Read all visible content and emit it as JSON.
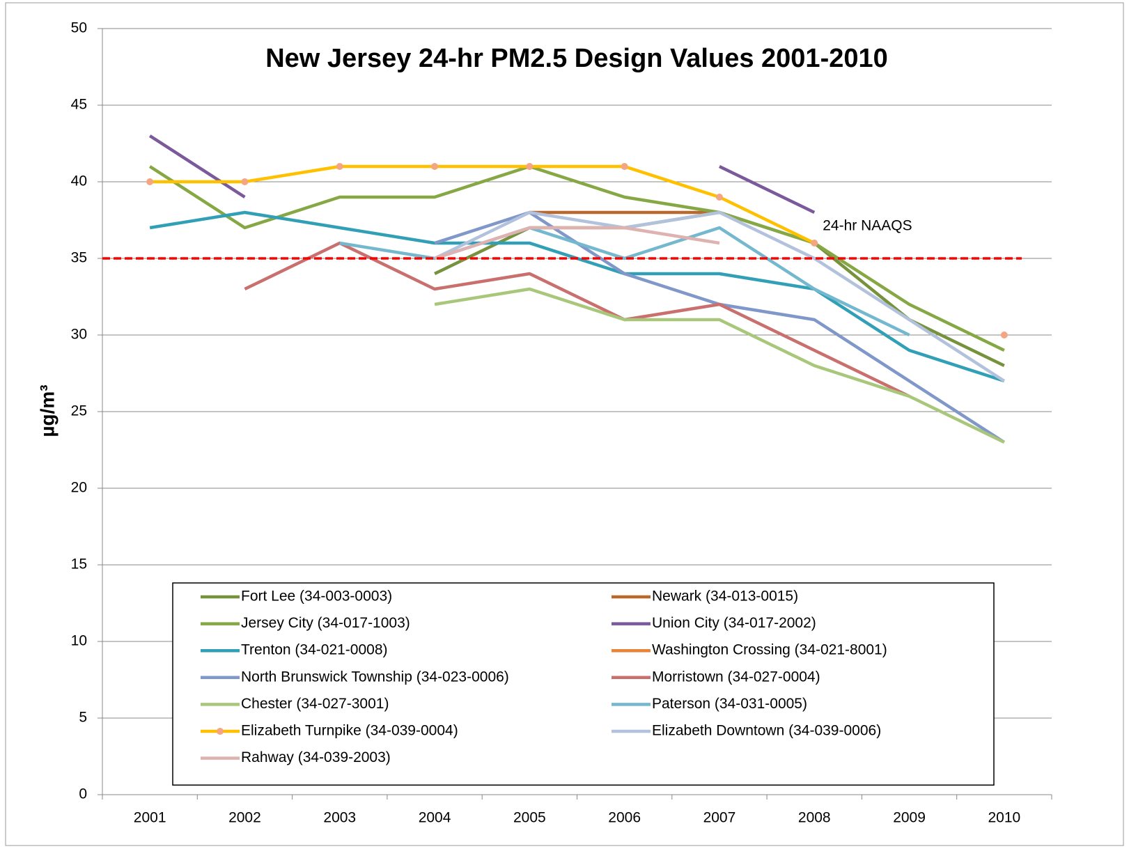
{
  "chart_data": {
    "type": "line",
    "title": "New Jersey 24-hr PM2.5 Design Values 2001-2010",
    "y_label": "µg/m³",
    "categories": [
      "2001",
      "2002",
      "2003",
      "2004",
      "2005",
      "2006",
      "2007",
      "2008",
      "2009",
      "2010"
    ],
    "ylim": [
      0,
      50
    ],
    "yticks": [
      0,
      5,
      10,
      15,
      20,
      25,
      30,
      35,
      40,
      45,
      50
    ],
    "grid": true,
    "reference_line": {
      "value": 35,
      "label": "24-hr NAAQS",
      "color": "#ff0000"
    },
    "legend": "bottom",
    "series": [
      {
        "name": "Fort Lee (34-003-0003)",
        "color": "#76923c",
        "values": [
          null,
          null,
          null,
          34,
          37,
          37,
          38,
          36,
          31,
          28
        ]
      },
      {
        "name": "Newark (34-013-0015)",
        "color": "#b9692b",
        "values": [
          null,
          null,
          null,
          null,
          38,
          38,
          38,
          null,
          null,
          null
        ]
      },
      {
        "name": "Jersey City (34-017-1003)",
        "color": "#86a844",
        "values": [
          41,
          37,
          39,
          39,
          41,
          39,
          38,
          36,
          32,
          29
        ]
      },
      {
        "name": "Union City (34-017-2002)",
        "color": "#7a5a9a",
        "values": [
          43,
          39,
          null,
          null,
          null,
          null,
          41,
          38,
          null,
          null
        ]
      },
      {
        "name": "Trenton (34-021-0008)",
        "color": "#31a0b6",
        "values": [
          37,
          38,
          37,
          36,
          36,
          34,
          34,
          33,
          29,
          27
        ]
      },
      {
        "name": "Washington Crossing (34-021-8001)",
        "color": "#e8833a",
        "values": [
          null,
          null,
          null,
          null,
          null,
          null,
          null,
          null,
          null,
          null
        ]
      },
      {
        "name": "North Brunswick Township (34-023-0006)",
        "color": "#7f97c9",
        "values": [
          null,
          null,
          null,
          36,
          38,
          34,
          32,
          31,
          27,
          23
        ]
      },
      {
        "name": "Morristown (34-027-0004)",
        "color": "#c96f6d",
        "values": [
          null,
          33,
          36,
          33,
          34,
          31,
          32,
          29,
          26,
          null
        ]
      },
      {
        "name": "Chester (34-027-3001)",
        "color": "#a9c77a",
        "values": [
          null,
          null,
          null,
          32,
          33,
          31,
          31,
          28,
          26,
          23
        ]
      },
      {
        "name": "Paterson (34-031-0005)",
        "color": "#74b8cf",
        "values": [
          null,
          null,
          36,
          35,
          37,
          35,
          37,
          33,
          30,
          null
        ]
      },
      {
        "name": "Elizabeth Turnpike (34-039-0004)",
        "color": "#ffc000",
        "marker": "#f4a582",
        "values": [
          40,
          40,
          41,
          41,
          41,
          41,
          39,
          36,
          null,
          30
        ]
      },
      {
        "name": "Elizabeth Downtown (34-039-0006)",
        "color": "#b3c2dc",
        "values": [
          null,
          null,
          null,
          35,
          38,
          37,
          38,
          35,
          31,
          27
        ]
      },
      {
        "name": "Rahway (34-039-2003)",
        "color": "#deb2b1",
        "values": [
          null,
          null,
          null,
          35,
          37,
          37,
          36,
          null,
          null,
          null
        ]
      }
    ]
  }
}
